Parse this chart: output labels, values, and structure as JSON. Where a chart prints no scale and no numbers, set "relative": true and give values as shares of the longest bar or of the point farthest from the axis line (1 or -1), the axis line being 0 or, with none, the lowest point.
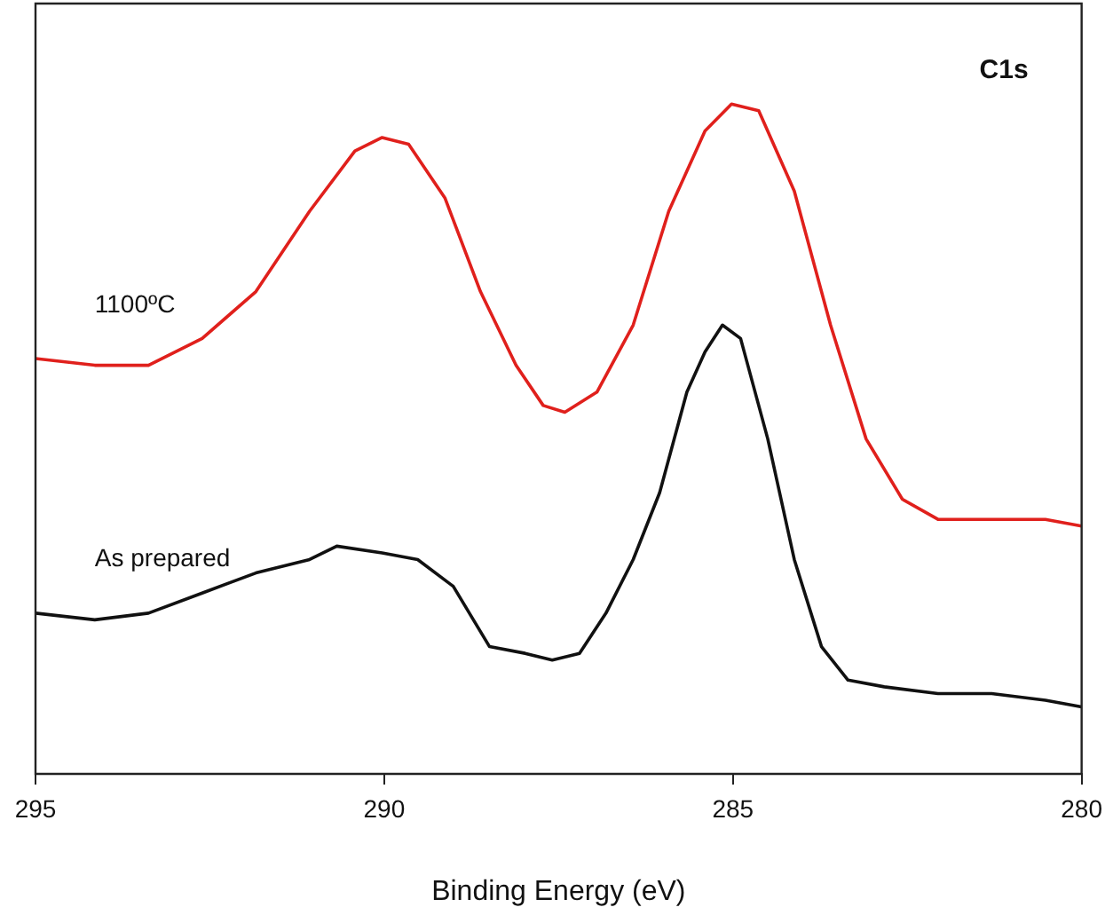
{
  "chart_data": {
    "type": "line",
    "xlabel": "Binding Energy (eV)",
    "relative": true,
    "xlim": [
      295,
      280
    ],
    "xticks": [
      295,
      290,
      285,
      280
    ],
    "grid": false,
    "legend": false,
    "marker": "none",
    "line_style": "solid",
    "annotations": [
      "C1s"
    ],
    "series": [
      {
        "name": "1100ºC",
        "color": "#e0201c",
        "x": [
          295,
          294.15,
          293.38,
          292.61,
          291.84,
          291.07,
          290.42,
          290.03,
          289.65,
          289.13,
          288.62,
          288.11,
          287.72,
          287.41,
          286.95,
          286.43,
          285.92,
          285.4,
          285.02,
          284.63,
          284.12,
          283.6,
          283.09,
          282.57,
          282.06,
          281.29,
          280.52,
          280
        ],
        "values": [
          0.62,
          0.61,
          0.61,
          0.65,
          0.72,
          0.84,
          0.93,
          0.95,
          0.94,
          0.86,
          0.72,
          0.61,
          0.55,
          0.54,
          0.57,
          0.67,
          0.84,
          0.96,
          1,
          0.99,
          0.87,
          0.67,
          0.5,
          0.41,
          0.38,
          0.38,
          0.38,
          0.37
        ]
      },
      {
        "name": "As prepared",
        "color": "#111111",
        "x": [
          295,
          294.15,
          293.38,
          292.61,
          291.84,
          291.07,
          290.68,
          290.03,
          289.52,
          289.01,
          288.49,
          287.98,
          287.59,
          287.2,
          286.82,
          286.43,
          286.05,
          285.66,
          285.4,
          285.15,
          284.89,
          284.5,
          284.12,
          283.73,
          283.35,
          282.83,
          282.06,
          281.29,
          280.52,
          280
        ],
        "values": [
          0.24,
          0.23,
          0.24,
          0.27,
          0.3,
          0.32,
          0.34,
          0.33,
          0.32,
          0.28,
          0.19,
          0.18,
          0.17,
          0.18,
          0.24,
          0.32,
          0.42,
          0.57,
          0.63,
          0.67,
          0.65,
          0.5,
          0.32,
          0.19,
          0.14,
          0.13,
          0.12,
          0.12,
          0.11,
          0.1
        ]
      }
    ]
  }
}
